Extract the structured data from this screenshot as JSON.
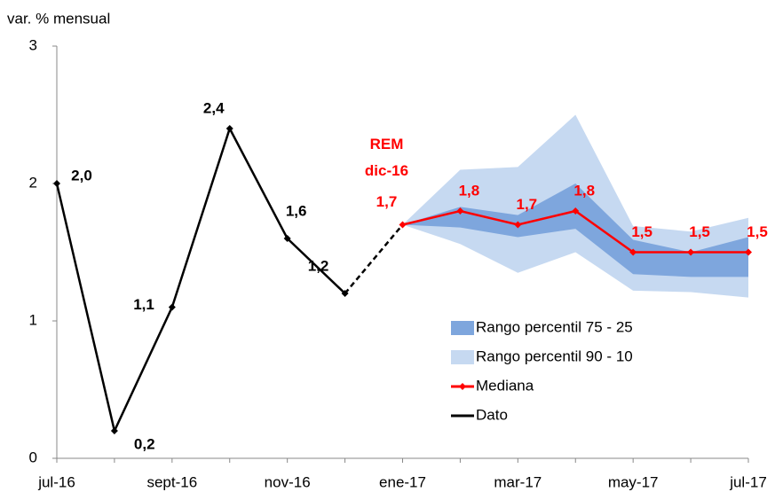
{
  "chart_data": {
    "type": "line-band",
    "y_label": "var. % mensual",
    "categories": [
      "jul-16",
      null,
      "sept-16",
      null,
      "nov-16",
      null,
      "ene-17",
      null,
      "mar-17",
      null,
      "may-17",
      null,
      "jul-17"
    ],
    "ylim": [
      0,
      3
    ],
    "yticks": [
      0,
      1,
      2,
      3
    ],
    "annotation": [
      "REM",
      "dic-16"
    ],
    "series": [
      {
        "name": "Rango percentil 75 - 25",
        "kind": "band",
        "color": "#7ea6dd",
        "low": [
          null,
          null,
          null,
          null,
          null,
          null,
          1.7,
          1.68,
          1.61,
          1.67,
          1.34,
          1.32,
          1.32
        ],
        "high": [
          null,
          null,
          null,
          null,
          null,
          null,
          1.7,
          1.83,
          1.77,
          2.0,
          1.59,
          1.5,
          1.61
        ]
      },
      {
        "name": "Rango percentil 90 - 10",
        "kind": "band",
        "color": "#c6d9f1",
        "low": [
          null,
          null,
          null,
          null,
          null,
          null,
          1.7,
          1.56,
          1.35,
          1.5,
          1.22,
          1.21,
          1.17
        ],
        "high": [
          null,
          null,
          null,
          null,
          null,
          null,
          1.7,
          2.1,
          2.12,
          2.5,
          1.69,
          1.65,
          1.75
        ]
      },
      {
        "name": "Mediana",
        "kind": "line",
        "color": "#ff0000",
        "markers": true,
        "values": [
          null,
          null,
          null,
          null,
          null,
          null,
          1.7,
          1.8,
          1.7,
          1.8,
          1.5,
          1.5,
          1.5
        ],
        "value_labels": [
          null,
          null,
          null,
          null,
          null,
          null,
          "1,7",
          "1,8",
          "1,7",
          "1,8",
          "1,5",
          "1,5",
          "1,5"
        ]
      },
      {
        "name": "Dato",
        "kind": "line",
        "color": "#000000",
        "markers": true,
        "values": [
          2.0,
          0.2,
          1.1,
          2.4,
          1.6,
          1.2,
          null,
          null,
          null,
          null,
          null,
          null,
          null
        ],
        "value_labels": [
          "2,0",
          "0,2",
          "1,1",
          "2,4",
          "1,6",
          "1,2",
          null,
          null,
          null,
          null,
          null,
          null,
          null
        ]
      }
    ]
  }
}
